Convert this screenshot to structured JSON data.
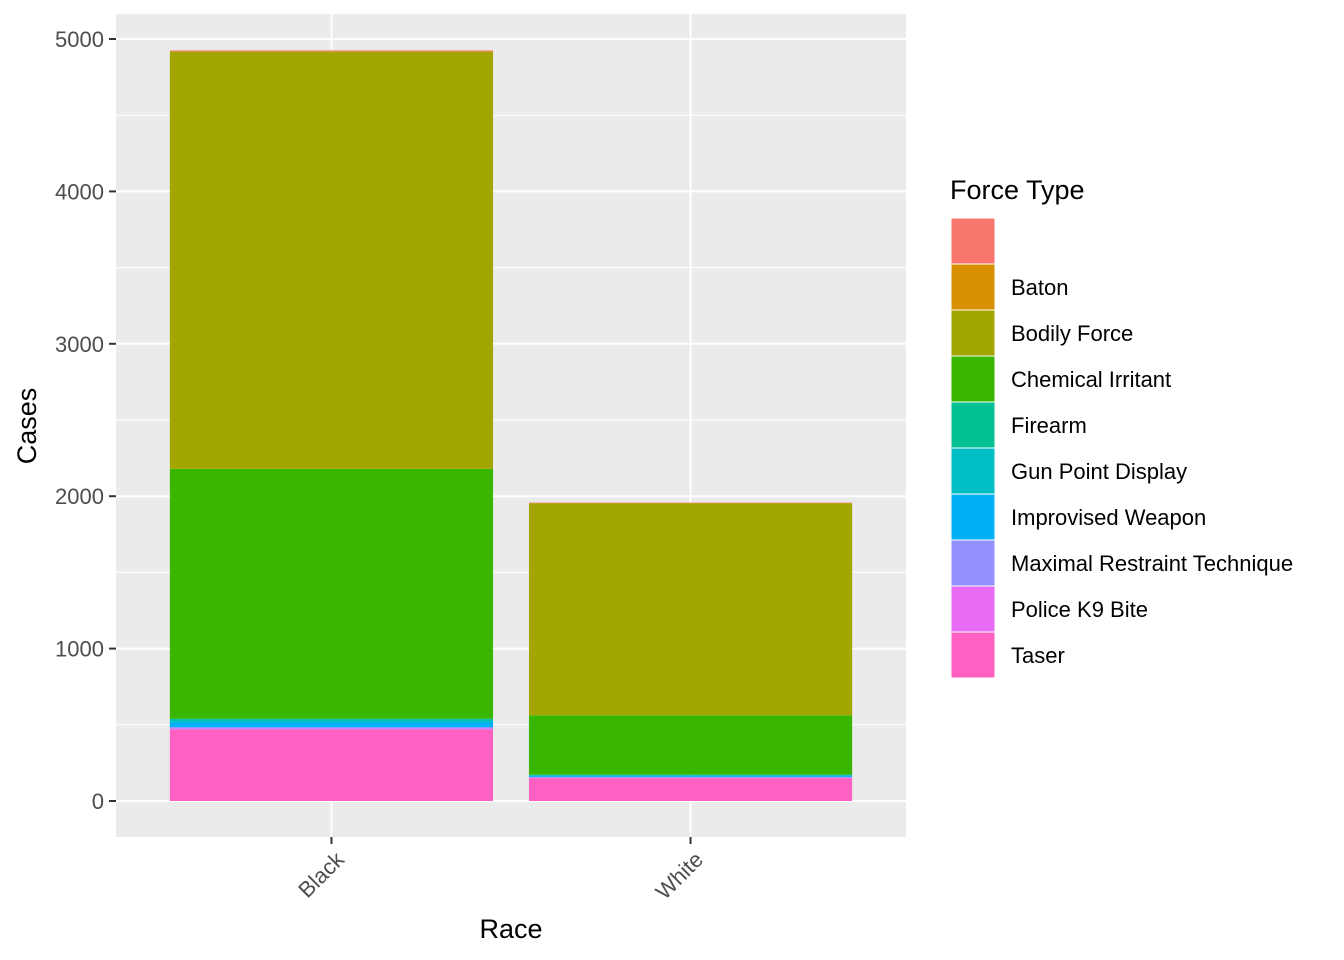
{
  "chart_data": {
    "type": "bar",
    "stacked": true,
    "xlabel": "Race",
    "ylabel": "Cases",
    "ylim": [
      0,
      5000
    ],
    "yticks": [
      0,
      1000,
      2000,
      3000,
      4000,
      5000
    ],
    "grid": true,
    "legend_title": "Force Type",
    "legend_position": "right",
    "categories": [
      "Black",
      "White"
    ],
    "series": [
      {
        "name": "Taser",
        "color": "#FF61C3",
        "values": [
          470,
          150
        ]
      },
      {
        "name": "Police K9 Bite",
        "color": "#E76BF3",
        "values": [
          5,
          3
        ]
      },
      {
        "name": "Maximal Restraint Technique",
        "color": "#9590FF",
        "values": [
          10,
          5
        ]
      },
      {
        "name": "Improvised Weapon",
        "color": "#00B0F6",
        "values": [
          30,
          8
        ]
      },
      {
        "name": "Gun Point Display",
        "color": "#00BFC4",
        "values": [
          20,
          5
        ]
      },
      {
        "name": "Firearm",
        "color": "#00C094",
        "values": [
          5,
          2
        ]
      },
      {
        "name": "Chemical Irritant",
        "color": "#39B600",
        "values": [
          1640,
          390
        ]
      },
      {
        "name": "Bodily Force",
        "color": "#A3A500",
        "values": [
          2735,
          1390
        ]
      },
      {
        "name": "Baton",
        "color": "#D89000",
        "values": [
          5,
          2
        ]
      },
      {
        "name": "",
        "color": "#F8766D",
        "values": [
          5,
          3
        ]
      }
    ]
  }
}
